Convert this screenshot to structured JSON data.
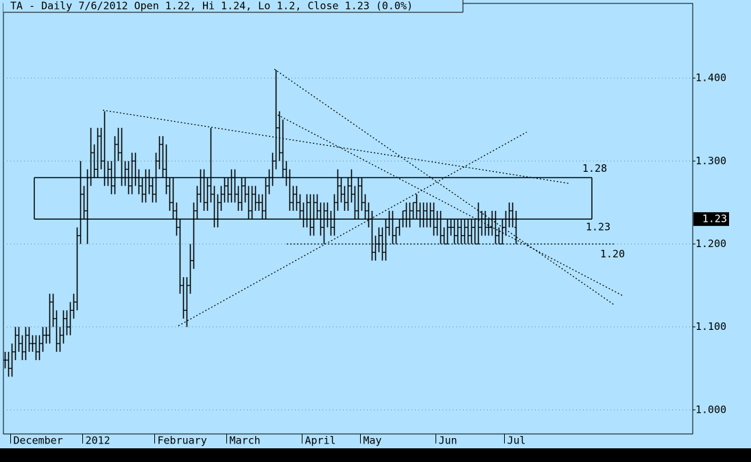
{
  "chart_data": {
    "type": "ohlc",
    "title": "TA - Daily 7/6/2012 Open 1.22, Hi 1.24, Lo 1.2, Close 1.23 (0.0%)",
    "color": "#000000",
    "categories": [
      null,
      null,
      "December",
      null,
      null,
      null,
      null,
      null,
      null,
      null,
      null,
      null,
      null,
      null,
      null,
      null,
      null,
      null,
      null,
      null,
      null,
      null,
      null,
      "2012",
      null,
      null,
      null,
      null,
      null,
      null,
      null,
      null,
      null,
      null,
      null,
      null,
      null,
      null,
      null,
      null,
      null,
      null,
      null,
      null,
      "February",
      null,
      null,
      null,
      null,
      null,
      null,
      null,
      null,
      null,
      null,
      null,
      null,
      null,
      null,
      null,
      null,
      null,
      null,
      null,
      null,
      "March",
      null,
      null,
      null,
      null,
      null,
      null,
      null,
      null,
      null,
      null,
      null,
      null,
      null,
      null,
      null,
      null,
      null,
      null,
      null,
      null,
      null,
      "April",
      null,
      null,
      null,
      null,
      null,
      null,
      null,
      null,
      null,
      null,
      null,
      null,
      null,
      null,
      null,
      null,
      "May",
      null,
      null,
      null,
      null,
      null,
      null,
      null,
      null,
      null,
      null,
      null,
      null,
      null,
      null,
      null,
      null,
      null,
      null,
      null,
      null,
      null,
      "Jun",
      null,
      null,
      null,
      null,
      null,
      null,
      null,
      null,
      null,
      null,
      null,
      null,
      null,
      null,
      null,
      null,
      null,
      null,
      null,
      "Jul",
      null,
      null,
      null
    ],
    "open": [
      1.06,
      1.06,
      1.05,
      1.07,
      1.09,
      1.08,
      1.07,
      1.09,
      1.08,
      1.08,
      1.07,
      1.08,
      1.09,
      1.09,
      1.13,
      1.11,
      1.08,
      1.09,
      1.11,
      1.1,
      1.12,
      1.13,
      1.21,
      1.26,
      1.24,
      1.28,
      1.31,
      1.29,
      1.33,
      1.3,
      1.28,
      1.29,
      1.27,
      1.32,
      1.31,
      1.28,
      1.29,
      1.27,
      1.3,
      1.28,
      1.27,
      1.26,
      1.28,
      1.27,
      1.26,
      1.3,
      1.32,
      1.29,
      1.27,
      1.25,
      1.24,
      1.22,
      1.15,
      1.12,
      1.15,
      1.18,
      1.24,
      1.26,
      1.28,
      1.25,
      1.27,
      1.26,
      1.23,
      1.25,
      1.26,
      1.27,
      1.26,
      1.28,
      1.26,
      1.25,
      1.27,
      1.26,
      1.24,
      1.26,
      1.25,
      1.25,
      1.24,
      1.27,
      1.28,
      1.3,
      1.34,
      1.31,
      1.29,
      1.28,
      1.25,
      1.26,
      1.25,
      1.24,
      1.23,
      1.25,
      1.22,
      1.25,
      1.24,
      1.22,
      1.24,
      1.23,
      1.22,
      1.25,
      1.27,
      1.26,
      1.25,
      1.27,
      1.26,
      1.24,
      1.27,
      1.25,
      1.24,
      1.23,
      1.19,
      1.2,
      1.21,
      1.19,
      1.22,
      1.23,
      1.21,
      1.22,
      1.23,
      1.24,
      1.23,
      1.24,
      1.25,
      1.24,
      1.23,
      1.24,
      1.23,
      1.24,
      1.22,
      1.23,
      1.21,
      1.2,
      1.22,
      1.22,
      1.21,
      1.22,
      1.21,
      1.22,
      1.21,
      1.22,
      1.2,
      1.22,
      1.23,
      1.22,
      1.22,
      1.23,
      1.21,
      1.2,
      1.22,
      1.23,
      1.24,
      1.22
    ],
    "high": [
      1.07,
      1.07,
      1.08,
      1.1,
      1.1,
      1.09,
      1.1,
      1.1,
      1.09,
      1.09,
      1.09,
      1.1,
      1.1,
      1.14,
      1.14,
      1.12,
      1.1,
      1.12,
      1.12,
      1.13,
      1.14,
      1.22,
      1.3,
      1.27,
      1.29,
      1.34,
      1.32,
      1.34,
      1.34,
      1.36,
      1.3,
      1.3,
      1.33,
      1.34,
      1.34,
      1.3,
      1.3,
      1.31,
      1.31,
      1.29,
      1.28,
      1.29,
      1.29,
      1.28,
      1.31,
      1.33,
      1.33,
      1.32,
      1.28,
      1.28,
      1.25,
      1.23,
      1.16,
      1.16,
      1.2,
      1.25,
      1.27,
      1.29,
      1.29,
      1.28,
      1.34,
      1.27,
      1.26,
      1.27,
      1.28,
      1.28,
      1.29,
      1.29,
      1.27,
      1.28,
      1.28,
      1.27,
      1.27,
      1.27,
      1.26,
      1.26,
      1.28,
      1.29,
      1.31,
      1.41,
      1.36,
      1.35,
      1.3,
      1.29,
      1.27,
      1.27,
      1.26,
      1.25,
      1.26,
      1.26,
      1.26,
      1.26,
      1.25,
      1.25,
      1.25,
      1.24,
      1.26,
      1.29,
      1.28,
      1.27,
      1.28,
      1.29,
      1.27,
      1.28,
      1.28,
      1.26,
      1.25,
      1.24,
      1.21,
      1.22,
      1.22,
      1.23,
      1.24,
      1.24,
      1.22,
      1.23,
      1.24,
      1.25,
      1.25,
      1.25,
      1.26,
      1.25,
      1.25,
      1.25,
      1.25,
      1.25,
      1.24,
      1.24,
      1.22,
      1.23,
      1.23,
      1.23,
      1.23,
      1.23,
      1.23,
      1.23,
      1.23,
      1.23,
      1.25,
      1.24,
      1.24,
      1.23,
      1.24,
      1.24,
      1.22,
      1.23,
      1.24,
      1.25,
      1.25,
      1.24
    ],
    "low": [
      1.05,
      1.04,
      1.04,
      1.06,
      1.07,
      1.06,
      1.06,
      1.07,
      1.07,
      1.06,
      1.06,
      1.07,
      1.08,
      1.08,
      1.1,
      1.07,
      1.07,
      1.08,
      1.09,
      1.09,
      1.11,
      1.12,
      1.2,
      1.23,
      1.2,
      1.27,
      1.28,
      1.28,
      1.29,
      1.27,
      1.27,
      1.26,
      1.26,
      1.3,
      1.27,
      1.27,
      1.26,
      1.26,
      1.27,
      1.26,
      1.25,
      1.25,
      1.26,
      1.25,
      1.25,
      1.29,
      1.28,
      1.26,
      1.24,
      1.23,
      1.21,
      1.14,
      1.11,
      1.1,
      1.14,
      1.17,
      1.23,
      1.25,
      1.24,
      1.24,
      1.25,
      1.22,
      1.22,
      1.24,
      1.25,
      1.25,
      1.25,
      1.25,
      1.24,
      1.24,
      1.25,
      1.23,
      1.23,
      1.24,
      1.24,
      1.23,
      1.23,
      1.26,
      1.27,
      1.29,
      1.3,
      1.28,
      1.27,
      1.24,
      1.24,
      1.24,
      1.23,
      1.22,
      1.22,
      1.21,
      1.21,
      1.23,
      1.21,
      1.2,
      1.22,
      1.21,
      1.21,
      1.24,
      1.25,
      1.24,
      1.24,
      1.25,
      1.23,
      1.23,
      1.24,
      1.23,
      1.22,
      1.18,
      1.18,
      1.19,
      1.18,
      1.18,
      1.21,
      1.2,
      1.2,
      1.21,
      1.22,
      1.22,
      1.22,
      1.23,
      1.23,
      1.22,
      1.22,
      1.22,
      1.22,
      1.21,
      1.21,
      1.2,
      1.2,
      1.2,
      1.21,
      1.2,
      1.2,
      1.2,
      1.2,
      1.2,
      1.2,
      1.2,
      1.2,
      1.21,
      1.21,
      1.21,
      1.21,
      1.2,
      1.2,
      1.2,
      1.21,
      1.22,
      1.22,
      1.2
    ],
    "close": [
      1.06,
      1.05,
      1.07,
      1.09,
      1.08,
      1.07,
      1.09,
      1.08,
      1.08,
      1.07,
      1.08,
      1.09,
      1.09,
      1.13,
      1.11,
      1.08,
      1.09,
      1.11,
      1.1,
      1.12,
      1.13,
      1.21,
      1.26,
      1.24,
      1.28,
      1.31,
      1.29,
      1.33,
      1.3,
      1.28,
      1.29,
      1.27,
      1.32,
      1.31,
      1.28,
      1.29,
      1.27,
      1.3,
      1.28,
      1.27,
      1.26,
      1.28,
      1.27,
      1.26,
      1.3,
      1.32,
      1.29,
      1.27,
      1.25,
      1.24,
      1.22,
      1.15,
      1.12,
      1.15,
      1.18,
      1.24,
      1.26,
      1.28,
      1.25,
      1.27,
      1.26,
      1.23,
      1.25,
      1.26,
      1.27,
      1.26,
      1.28,
      1.26,
      1.25,
      1.27,
      1.26,
      1.24,
      1.26,
      1.25,
      1.25,
      1.24,
      1.27,
      1.28,
      1.3,
      1.34,
      1.31,
      1.29,
      1.28,
      1.25,
      1.26,
      1.25,
      1.24,
      1.23,
      1.25,
      1.22,
      1.25,
      1.24,
      1.22,
      1.24,
      1.23,
      1.22,
      1.25,
      1.27,
      1.26,
      1.25,
      1.27,
      1.26,
      1.24,
      1.27,
      1.25,
      1.24,
      1.23,
      1.19,
      1.2,
      1.21,
      1.19,
      1.22,
      1.23,
      1.21,
      1.22,
      1.23,
      1.24,
      1.23,
      1.24,
      1.25,
      1.24,
      1.23,
      1.24,
      1.23,
      1.24,
      1.22,
      1.23,
      1.21,
      1.2,
      1.22,
      1.22,
      1.21,
      1.22,
      1.21,
      1.22,
      1.21,
      1.22,
      1.2,
      1.22,
      1.23,
      1.22,
      1.22,
      1.23,
      1.21,
      1.2,
      1.22,
      1.23,
      1.24,
      1.23,
      1.23
    ],
    "ylim": [
      0.971,
      1.49
    ],
    "yticks": [
      {
        "value": 1,
        "label": "1.000"
      },
      {
        "value": 1.1,
        "label": "1.100"
      },
      {
        "value": 1.2,
        "label": "1.200"
      },
      {
        "value": 1.3,
        "label": "1.300"
      },
      {
        "value": 1.4,
        "label": "1.400"
      }
    ],
    "grid": true,
    "levels": [
      1.28,
      1.23,
      {
        "value": 1.2,
        "label": "1.20"
      }
    ]
  }
}
